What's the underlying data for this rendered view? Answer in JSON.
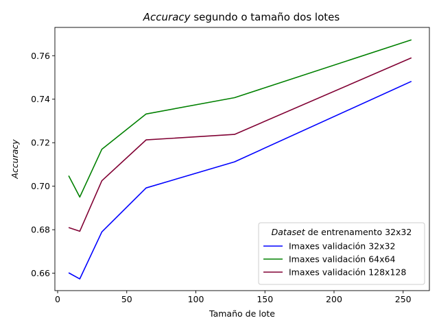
{
  "chart_data": {
    "type": "line",
    "title_italic": "Accuracy",
    "title_rest": " segundo o tamaño dos lotes",
    "xlabel": "Tamaño de lote",
    "ylabel": "Accuracy",
    "xlim": [
      -2,
      269
    ],
    "ylim": [
      0.652,
      0.773
    ],
    "x_ticks": [
      0,
      50,
      100,
      150,
      200,
      250
    ],
    "x_tick_labels": [
      "0",
      "50",
      "100",
      "150",
      "200",
      "250"
    ],
    "y_ticks": [
      0.66,
      0.68,
      0.7,
      0.72,
      0.74,
      0.76
    ],
    "y_tick_labels": [
      "0.66",
      "0.68",
      "0.70",
      "0.72",
      "0.74",
      "0.76"
    ],
    "grid": false,
    "legend": {
      "placement": "lower-right",
      "title_italic": "Dataset",
      "title_rest": " de entrenamento 32x32"
    },
    "x": [
      8,
      16,
      32,
      64,
      128,
      256
    ],
    "series": [
      {
        "name": "Imaxes validación 32x32",
        "color": "#0000ff",
        "values": [
          0.6602,
          0.6574,
          0.679,
          0.6992,
          0.7112,
          0.7482
        ]
      },
      {
        "name": "Imaxes validación 64x64",
        "color": "#008000",
        "values": [
          0.7048,
          0.695,
          0.717,
          0.7332,
          0.7407,
          0.7673
        ]
      },
      {
        "name": "Imaxes validación 128x128",
        "color": "#800033",
        "values": [
          0.681,
          0.6793,
          0.7025,
          0.7213,
          0.7238,
          0.759
        ]
      }
    ]
  }
}
